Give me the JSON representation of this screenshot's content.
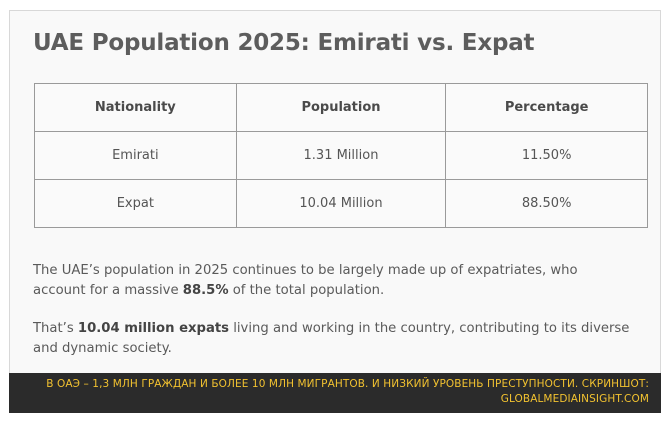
{
  "page_title": "UAE Population 2025: Emirati vs. Expat",
  "table": {
    "headers": [
      "Nationality",
      "Population",
      "Percentage"
    ],
    "rows": [
      [
        "Emirati",
        "1.31 Million",
        "11.50%"
      ],
      [
        "Expat",
        "10.04 Million",
        "88.50%"
      ]
    ]
  },
  "paragraphs": {
    "p1": {
      "before": "The UAE’s population in 2025 continues to be largely made up of expatriates, who account for a massive ",
      "bold": "88.5%",
      "after": " of the total population."
    },
    "p2": {
      "before": "That’s ",
      "bold": "10.04 million expats",
      "after": " living and working in the country, contributing to its diverse and dynamic society."
    }
  },
  "caption": {
    "line1": "В ОАЭ – 1,3 млн граждан и более 10 млн мигрантов. И низкий уровень преступности. Скриншот:",
    "line2": "globalmediainsight.com"
  },
  "colors": {
    "title": "#5d5d5d",
    "caption_bg": "#2b2b2b",
    "caption_text": "#f2c230",
    "table_border": "#9a9a9a"
  }
}
